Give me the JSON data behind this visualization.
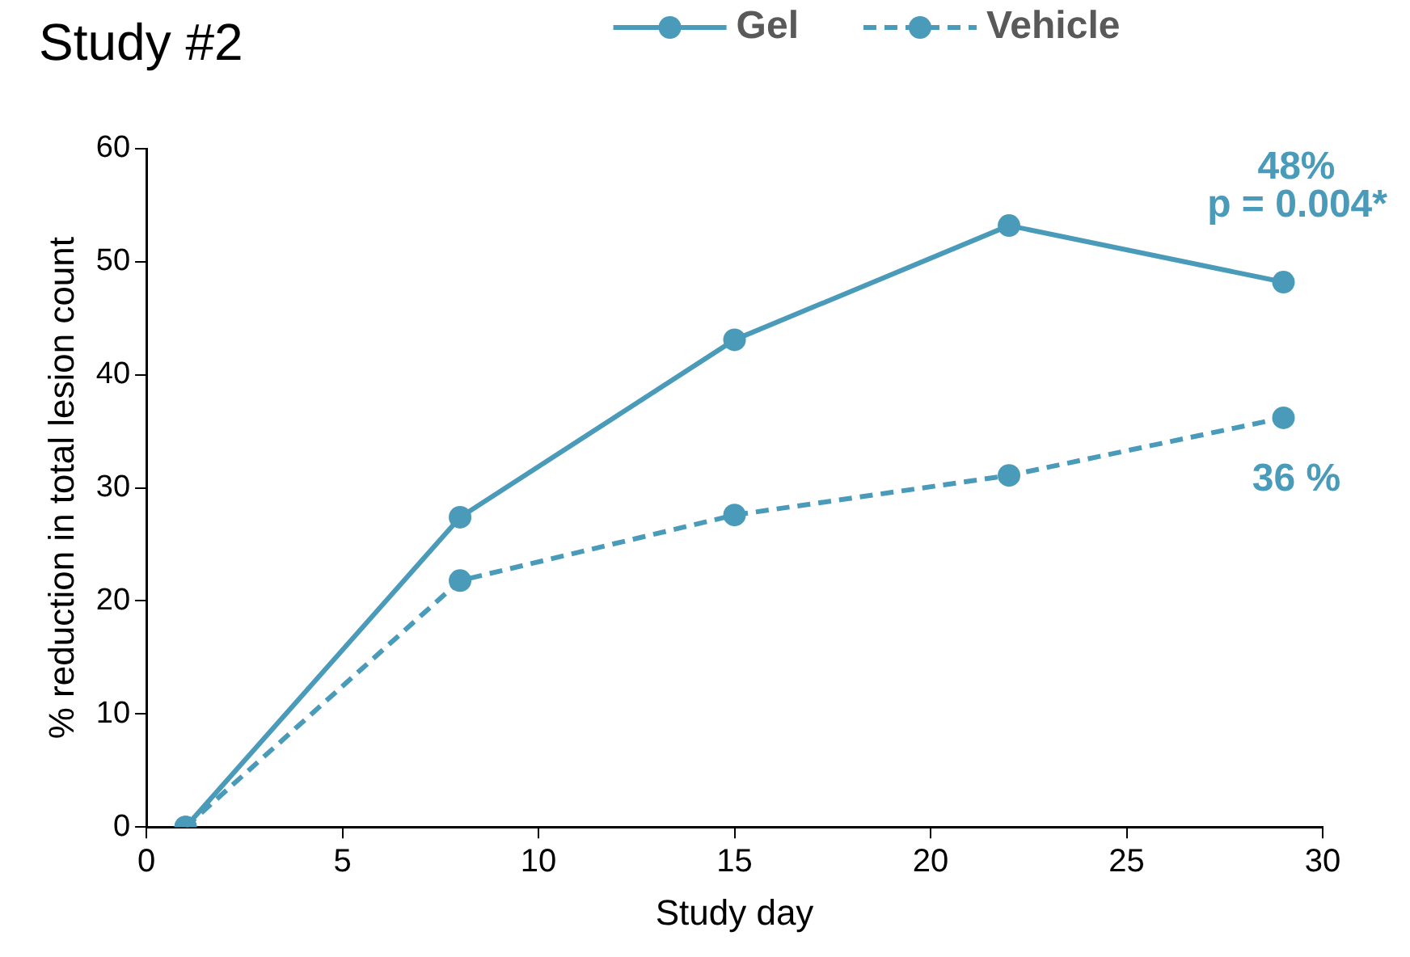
{
  "chart_data": {
    "type": "line",
    "title": "Study #2",
    "xlabel": "Study day",
    "ylabel": "% reduction in total lesion count",
    "x": [
      1,
      8,
      15,
      22,
      29
    ],
    "series": [
      {
        "name": "Gel",
        "color": "#4a9aba",
        "values": [
          0,
          27.4,
          43.1,
          53.2,
          48.2
        ],
        "value_labels": [
          null,
          null,
          null,
          null,
          "48%"
        ],
        "line_style": "solid"
      },
      {
        "name": "Vehicle",
        "color": "#4a9aba",
        "values": [
          0,
          21.8,
          27.6,
          31.1,
          36.2
        ],
        "value_labels": [
          null,
          null,
          null,
          null,
          "36 %"
        ],
        "line_style": "dashed"
      }
    ],
    "xlim": [
      0,
      30
    ],
    "xticks": [
      0,
      5,
      10,
      15,
      20,
      25,
      30
    ],
    "ylim": [
      0,
      60
    ],
    "yticks": [
      0,
      10,
      20,
      30,
      40,
      50,
      60
    ],
    "grid": false,
    "legend": "top",
    "marker": "circle",
    "annotations": [
      "p = 0.004*"
    ]
  }
}
